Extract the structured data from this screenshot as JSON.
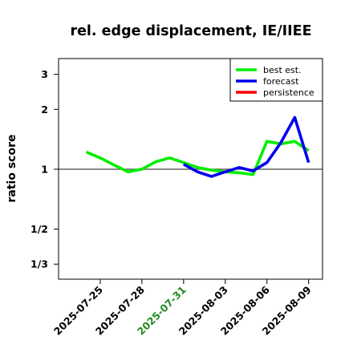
{
  "chart_data": {
    "type": "line",
    "title": "rel. edge displacement, IE/IIEE",
    "xlabel": "",
    "ylabel": "ratio score",
    "y_scale": "log",
    "ylim": [
      0.28,
      3.6
    ],
    "xlim": [
      "2025-07-22",
      "2025-08-10"
    ],
    "y_ticks": [
      {
        "value": 0.3333,
        "label": "1/3"
      },
      {
        "value": 0.5,
        "label": "1/2"
      },
      {
        "value": 1,
        "label": "1"
      },
      {
        "value": 2,
        "label": "2"
      },
      {
        "value": 3,
        "label": "3"
      }
    ],
    "x_ticks": [
      {
        "date": "2025-07-25",
        "label": "2025-07-25",
        "color": "#000000"
      },
      {
        "date": "2025-07-28",
        "label": "2025-07-28",
        "color": "#000000"
      },
      {
        "date": "2025-07-31",
        "label": "2025-07-31",
        "color": "#228b22"
      },
      {
        "date": "2025-08-03",
        "label": "2025-08-03",
        "color": "#000000"
      },
      {
        "date": "2025-08-06",
        "label": "2025-08-06",
        "color": "#000000"
      },
      {
        "date": "2025-08-09",
        "label": "2025-08-09",
        "color": "#000000"
      }
    ],
    "reference_line": 1,
    "legend_position": "top-right",
    "series": [
      {
        "name": "best est.",
        "color": "#00ee00",
        "points": [
          {
            "x": "2025-07-24",
            "y": 1.22
          },
          {
            "x": "2025-07-25",
            "y": 1.14
          },
          {
            "x": "2025-07-26",
            "y": 1.05
          },
          {
            "x": "2025-07-27",
            "y": 0.97
          },
          {
            "x": "2025-07-28",
            "y": 1.0
          },
          {
            "x": "2025-07-29",
            "y": 1.09
          },
          {
            "x": "2025-07-30",
            "y": 1.14
          },
          {
            "x": "2025-07-31",
            "y": 1.08
          },
          {
            "x": "2025-08-01",
            "y": 1.02
          },
          {
            "x": "2025-08-02",
            "y": 0.99
          },
          {
            "x": "2025-08-03",
            "y": 0.97
          },
          {
            "x": "2025-08-04",
            "y": 0.96
          },
          {
            "x": "2025-08-05",
            "y": 0.94
          },
          {
            "x": "2025-08-06",
            "y": 1.38
          },
          {
            "x": "2025-08-07",
            "y": 1.34
          },
          {
            "x": "2025-08-08",
            "y": 1.38
          },
          {
            "x": "2025-08-09",
            "y": 1.24
          }
        ]
      },
      {
        "name": "forecast",
        "color": "#0000ee",
        "points": [
          {
            "x": "2025-07-31",
            "y": 1.06
          },
          {
            "x": "2025-08-01",
            "y": 0.97
          },
          {
            "x": "2025-08-02",
            "y": 0.92
          },
          {
            "x": "2025-08-03",
            "y": 0.97
          },
          {
            "x": "2025-08-04",
            "y": 1.02
          },
          {
            "x": "2025-08-05",
            "y": 0.98
          },
          {
            "x": "2025-08-06",
            "y": 1.08
          },
          {
            "x": "2025-08-07",
            "y": 1.36
          },
          {
            "x": "2025-08-08",
            "y": 1.82
          },
          {
            "x": "2025-08-09",
            "y": 1.08
          }
        ]
      },
      {
        "name": "persistence",
        "color": "#ff0000",
        "points": []
      }
    ]
  }
}
